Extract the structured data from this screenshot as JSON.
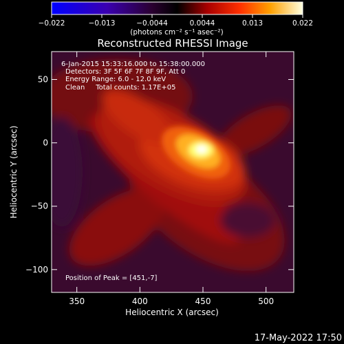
{
  "colorbar": {
    "ticks": [
      "−0.022",
      "−0.013",
      "−0.0044",
      "0.0044",
      "0.013",
      "0.022"
    ],
    "units": "(photons cm⁻² s⁻¹ asec⁻²)"
  },
  "footer": {
    "timestamp": "17-May-2022 17:50"
  },
  "chart_data": {
    "type": "heatmap",
    "title": "Reconstructed RHESSI Image",
    "xlabel": "Heliocentric X (arcsec)",
    "ylabel": "Heliocentric Y (arcsec)",
    "xlim": [
      330,
      522
    ],
    "ylim": [
      -118,
      72
    ],
    "x_ticks": [
      350,
      400,
      450,
      500
    ],
    "y_ticks": [
      50,
      0,
      -50,
      -100
    ],
    "x_tick_labels": [
      "350",
      "400",
      "450",
      "500"
    ],
    "y_tick_labels": [
      "50",
      "0",
      "−50",
      "−100"
    ],
    "colorbar_range": [
      -0.022,
      0.022
    ],
    "peak": [
      451,
      -7
    ],
    "annotations": [
      "6-Jan-2015 15:33:16.000 to 15:38:00.000",
      "Detectors: 3F 5F 6F 7F 8F 9F, Att 0",
      "Energy Range: 6.0 - 12.0 keV",
      "Clean     Total counts: 1.17E+05",
      "Position of Peak = [451,-7]"
    ]
  }
}
